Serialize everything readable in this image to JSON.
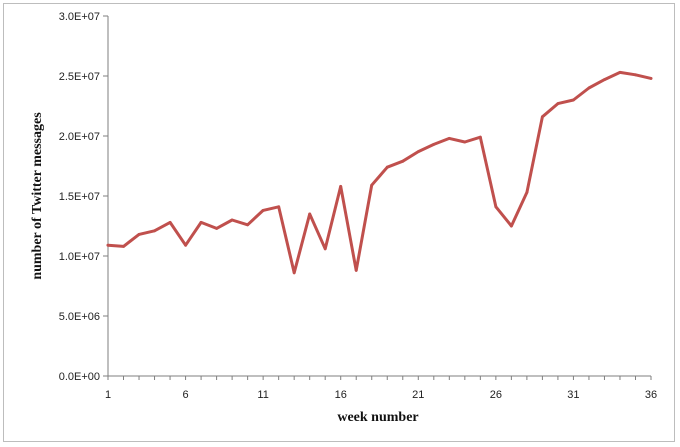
{
  "chart_data": {
    "type": "line",
    "title": "",
    "xlabel": "week number",
    "ylabel": "number  of Twitter  messages",
    "x_ticks": [
      "1",
      "6",
      "11",
      "16",
      "21",
      "26",
      "31",
      "36"
    ],
    "y_ticks": [
      "0.0E+00",
      "5.0E+06",
      "1.0E+07",
      "1.5E+07",
      "2.0E+07",
      "2.5E+07",
      "3.0E+07"
    ],
    "xlim": [
      1,
      36
    ],
    "ylim": [
      0,
      30000000
    ],
    "grid": false,
    "series": [
      {
        "color": "#c0504d",
        "x": [
          1,
          2,
          3,
          4,
          5,
          6,
          7,
          8,
          9,
          10,
          11,
          12,
          13,
          14,
          15,
          16,
          17,
          18,
          19,
          20,
          21,
          22,
          23,
          24,
          25,
          26,
          27,
          28,
          29,
          30,
          31,
          32,
          33,
          34,
          35,
          36
        ],
        "values": [
          10900000,
          10800000,
          11800000,
          12100000,
          12800000,
          10900000,
          12800000,
          12300000,
          13000000,
          12600000,
          13800000,
          14100000,
          8600000,
          13500000,
          10600000,
          15800000,
          8800000,
          15900000,
          17400000,
          17900000,
          18700000,
          19300000,
          19800000,
          19500000,
          19900000,
          14100000,
          12500000,
          15300000,
          21600000,
          22700000,
          23000000,
          24000000,
          24700000,
          25300000,
          25100000,
          24800000
        ]
      }
    ]
  }
}
